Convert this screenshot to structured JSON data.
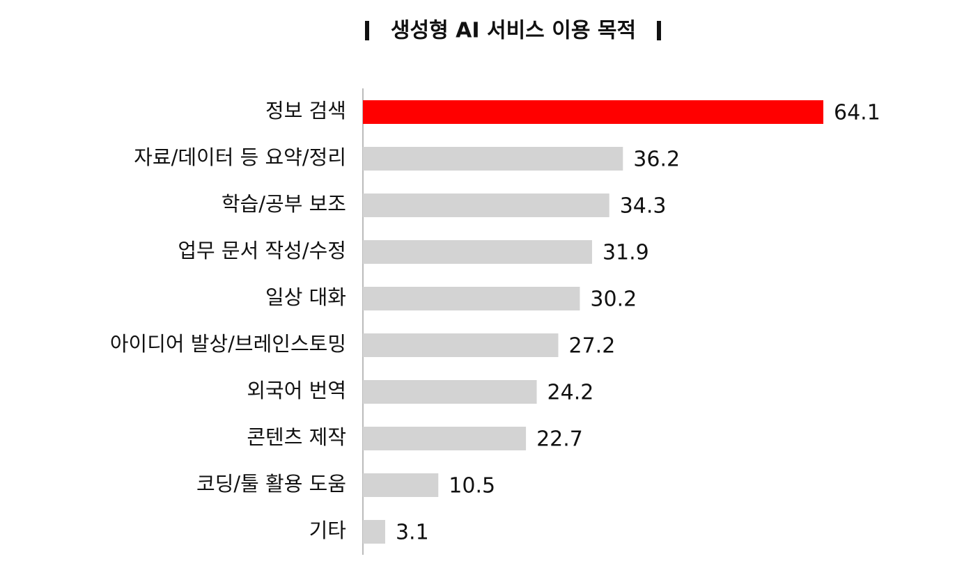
{
  "chart_data": {
    "type": "hbar",
    "title": "생성형 AI 서비스 이용 목적",
    "categories": [
      "정보 검색",
      "자료/데이터 등 요약/정리",
      "학습/공부 보조",
      "업무 문서 작성/수정",
      "일상 대화",
      "아이디어 발상/브레인스토밍",
      "외국어 번역",
      "콘텐츠 제작",
      "코딩/툴 활용 도움",
      "기타"
    ],
    "values": [
      64.1,
      36.2,
      34.3,
      31.9,
      30.2,
      27.2,
      24.2,
      22.7,
      10.5,
      3.1
    ],
    "colors": [
      "#ff0000",
      "#d3d3d3",
      "#d3d3d3",
      "#d3d3d3",
      "#d3d3d3",
      "#d3d3d3",
      "#d3d3d3",
      "#d3d3d3",
      "#d3d3d3",
      "#d3d3d3"
    ]
  }
}
